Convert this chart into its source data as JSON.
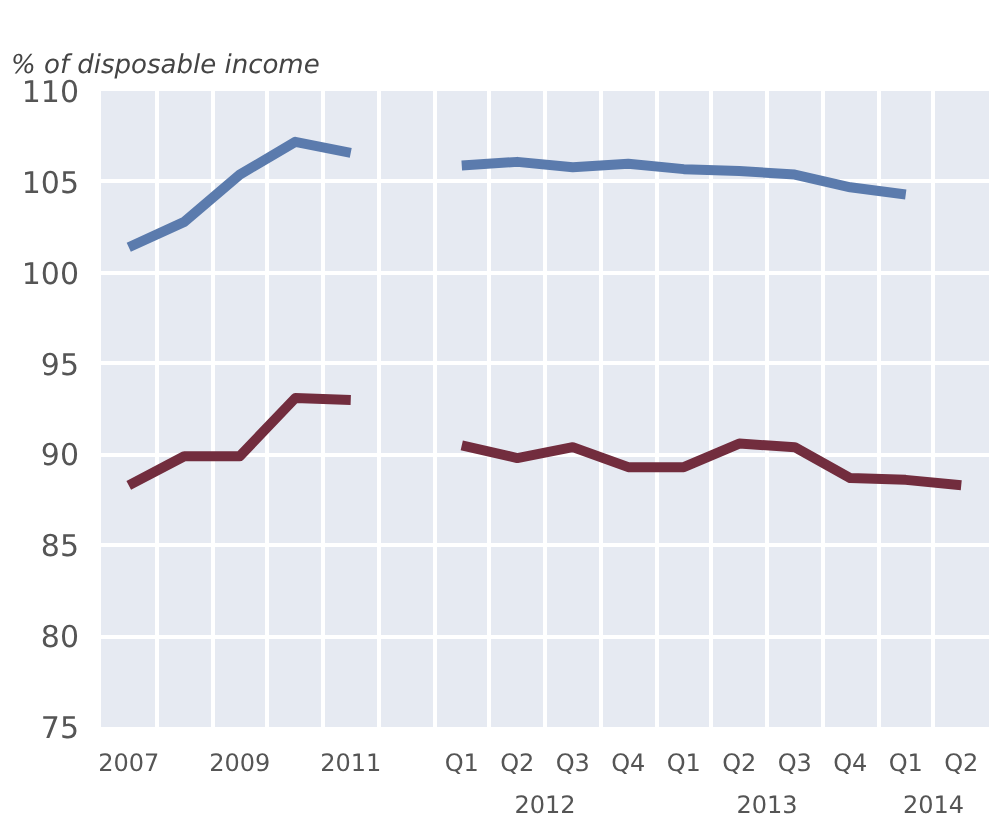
{
  "chart_data": {
    "type": "line",
    "ylabel": "% of disposable income",
    "categories": [
      "2007",
      null,
      "2009",
      null,
      "2011",
      null,
      "Q1",
      "Q2",
      "Q3",
      "Q4",
      "Q1",
      "Q2",
      "Q3",
      "Q4",
      "Q1",
      "Q2"
    ],
    "series": [
      {
        "color": "#5b7bad",
        "values": [
          101.4,
          102.8,
          105.4,
          107.2,
          106.6,
          null,
          105.9,
          106.1,
          105.8,
          106.0,
          105.7,
          105.6,
          105.4,
          104.7,
          104.3,
          null
        ]
      },
      {
        "color": "#722d3e",
        "values": [
          88.3,
          89.9,
          89.9,
          93.1,
          93.0,
          null,
          90.5,
          89.8,
          90.4,
          89.3,
          89.3,
          90.6,
          90.4,
          88.7,
          88.6,
          88.3
        ]
      }
    ],
    "ylim": [
      75,
      110
    ],
    "yticks": [
      75,
      80,
      85,
      90,
      95,
      100,
      105,
      110
    ],
    "grid": true,
    "annotations": [
      "2012",
      "2013",
      "2014"
    ]
  }
}
